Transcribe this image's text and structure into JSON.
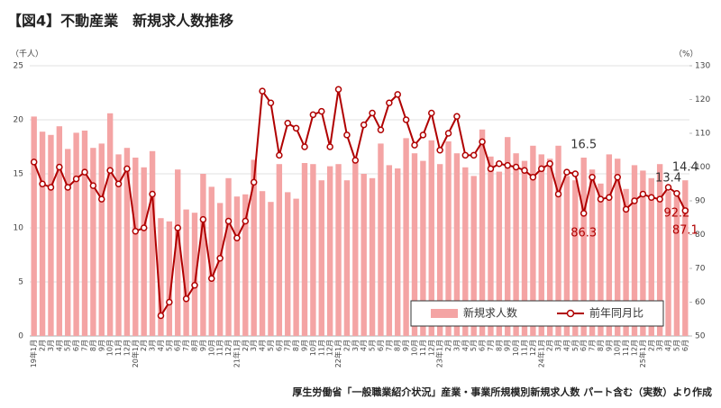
{
  "chart_data": {
    "type": "bar_line",
    "title": "【図4】不動産業　新規求人数推移",
    "y_axis_label": "（千人）",
    "y2_axis_label": "（%）",
    "source": "厚生労働省「一般職業紹介状況」産業・事業所規模別新規求人数 パート含む（実数）より作成",
    "categories": [
      "19年1月",
      "2月",
      "3月",
      "4月",
      "5月",
      "6月",
      "7月",
      "8月",
      "9月",
      "10月",
      "11月",
      "12月",
      "20年1月",
      "2月",
      "3月",
      "4月",
      "5月",
      "6月",
      "7月",
      "8月",
      "9月",
      "10月",
      "11月",
      "12月",
      "21年1月",
      "2月",
      "3月",
      "4月",
      "5月",
      "6月",
      "7月",
      "8月",
      "9月",
      "10月",
      "11月",
      "12月",
      "22年1月",
      "2月",
      "3月",
      "4月",
      "5月",
      "6月",
      "7月",
      "8月",
      "9月",
      "10月",
      "11月",
      "12月",
      "23年1月",
      "2月",
      "3月",
      "4月",
      "5月",
      "6月",
      "7月",
      "8月",
      "9月",
      "10月",
      "11月",
      "12月",
      "24年1月",
      "2月",
      "3月",
      "4月",
      "5月",
      "6月",
      "7月",
      "8月",
      "9月",
      "10月",
      "11月",
      "12月",
      "25年1月",
      "2月",
      "3月",
      "4月",
      "5月",
      "6月"
    ],
    "series": [
      {
        "name": "新規求人数",
        "color": "#f4a4a4",
        "axis": "y",
        "values": [
          20.3,
          18.9,
          18.6,
          19.4,
          17.3,
          18.8,
          19.0,
          17.4,
          17.8,
          20.6,
          16.8,
          17.4,
          16.5,
          15.6,
          17.1,
          10.9,
          10.6,
          15.4,
          11.7,
          11.4,
          15.0,
          13.8,
          12.3,
          14.6,
          12.9,
          13.1,
          16.3,
          13.4,
          12.4,
          15.9,
          13.3,
          12.7,
          16.0,
          15.9,
          14.4,
          15.7,
          15.9,
          14.4,
          16.1,
          15.0,
          14.6,
          17.8,
          15.8,
          15.5,
          18.3,
          16.9,
          16.2,
          18.1,
          15.9,
          18.0,
          16.9,
          15.6,
          14.8,
          19.1,
          16.6,
          15.2,
          18.4,
          16.9,
          16.2,
          17.6,
          16.8,
          16.4,
          17.6,
          14.8,
          14.4,
          16.5,
          15.4,
          14.1,
          16.8,
          16.4,
          13.6,
          15.8,
          15.3,
          14.6,
          15.9,
          13.4,
          12.9,
          14.4
        ],
        "value_labels": [
          null,
          null,
          null,
          null,
          null,
          null,
          null,
          null,
          null,
          null,
          null,
          null,
          null,
          null,
          null,
          null,
          null,
          null,
          null,
          null,
          null,
          null,
          null,
          null,
          null,
          null,
          null,
          null,
          null,
          null,
          null,
          null,
          null,
          null,
          null,
          null,
          null,
          null,
          null,
          null,
          null,
          null,
          null,
          null,
          null,
          null,
          null,
          null,
          null,
          null,
          null,
          null,
          null,
          null,
          null,
          null,
          null,
          null,
          null,
          null,
          null,
          null,
          null,
          null,
          null,
          "16.5",
          null,
          null,
          null,
          null,
          null,
          null,
          null,
          null,
          null,
          "13.4",
          null,
          "14.4"
        ]
      },
      {
        "name": "前年同月比",
        "color": "#b00000",
        "axis": "y2",
        "values": [
          101.5,
          95,
          94,
          100,
          94,
          96.5,
          98.5,
          94.5,
          90.5,
          99,
          95,
          99.5,
          81,
          82,
          92,
          56,
          60,
          82,
          61,
          65,
          84.5,
          67,
          73,
          84,
          79,
          84,
          95.5,
          122.5,
          119,
          103.5,
          113,
          111.5,
          106,
          115.5,
          116.5,
          106,
          123,
          109.5,
          102,
          112.5,
          116,
          111,
          119,
          121.5,
          114,
          106.5,
          109.5,
          116,
          105,
          110,
          115,
          103.5,
          103.5,
          107.5,
          99.5,
          101,
          100.5,
          100,
          99,
          97,
          99.5,
          101,
          92,
          98.5,
          98,
          86.3,
          97,
          90.5,
          91,
          97,
          87.5,
          90,
          92,
          91,
          90.5,
          94,
          92.2,
          87.1
        ],
        "value_labels": [
          null,
          null,
          null,
          null,
          null,
          null,
          null,
          null,
          null,
          null,
          null,
          null,
          null,
          null,
          null,
          null,
          null,
          null,
          null,
          null,
          null,
          null,
          null,
          null,
          null,
          null,
          null,
          null,
          null,
          null,
          null,
          null,
          null,
          null,
          null,
          null,
          null,
          null,
          null,
          null,
          null,
          null,
          null,
          null,
          null,
          null,
          null,
          null,
          null,
          null,
          null,
          null,
          null,
          null,
          null,
          null,
          null,
          null,
          null,
          null,
          null,
          null,
          null,
          null,
          null,
          "86.3",
          null,
          null,
          null,
          null,
          null,
          null,
          null,
          null,
          null,
          null,
          "92.2",
          "87.1"
        ]
      }
    ],
    "ylim": [
      0,
      25
    ],
    "yticks": [
      0,
      5,
      10,
      15,
      20,
      25
    ],
    "y2lim": [
      50,
      130
    ],
    "y2ticks": [
      50,
      60,
      70,
      80,
      90,
      100,
      110,
      120,
      130
    ],
    "grid": true,
    "legend": "lower right"
  }
}
